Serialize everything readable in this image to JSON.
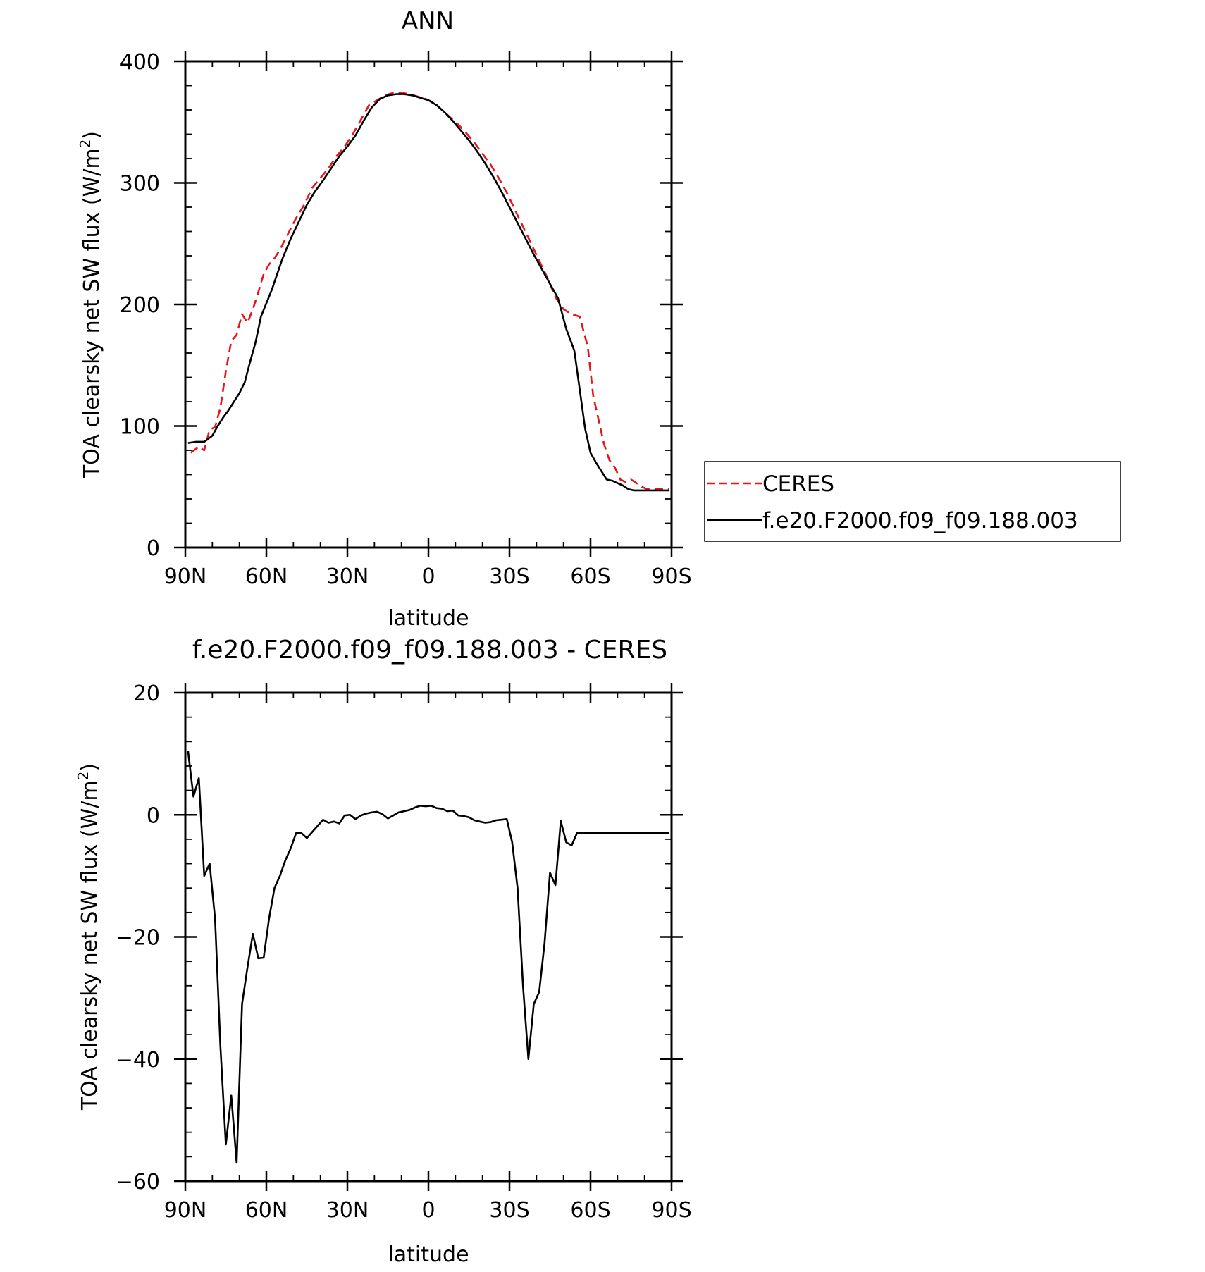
{
  "chart_data": [
    {
      "type": "line",
      "title": "ANN",
      "xlabel": "latitude",
      "ylabel": "TOA clearsky net SW flux (W/m",
      "ylabel_superscript": "2",
      "ylabel_suffix": ")",
      "xlim": [
        90,
        -90
      ],
      "ylim": [
        0,
        400
      ],
      "xticks": [
        {
          "value": 90,
          "label": "90N"
        },
        {
          "value": 60,
          "label": "60N"
        },
        {
          "value": 30,
          "label": "30N"
        },
        {
          "value": 0,
          "label": "0"
        },
        {
          "value": -30,
          "label": "30S"
        },
        {
          "value": -60,
          "label": "60S"
        },
        {
          "value": -90,
          "label": "90S"
        }
      ],
      "yticks": [
        {
          "value": 0,
          "label": "0"
        },
        {
          "value": 100,
          "label": "100"
        },
        {
          "value": 200,
          "label": "200"
        },
        {
          "value": 300,
          "label": "300"
        },
        {
          "value": 400,
          "label": "400"
        }
      ],
      "grid": false,
      "legend": {
        "position": "right-of-plot",
        "entries": [
          "CERES",
          "f.e20.F2000.f09_f09.188.003"
        ]
      },
      "series": [
        {
          "name": "CERES",
          "color": "#e8141a",
          "dash": "dashed",
          "x": [
            88,
            85,
            83,
            81,
            79,
            77,
            75,
            73,
            71,
            69,
            67,
            65,
            63,
            61,
            59,
            57,
            55,
            52,
            49,
            46,
            43,
            40,
            37,
            34,
            31,
            28,
            25,
            22,
            19,
            16,
            13,
            10,
            7,
            4,
            1,
            -2,
            -5,
            -8,
            -11,
            -14,
            -17,
            -20,
            -23,
            -26,
            -29,
            -32,
            -35,
            -38,
            -41,
            -44,
            -47,
            -50,
            -53,
            -56,
            -59,
            -61,
            -63,
            -65,
            -67,
            -69,
            -71,
            -73,
            -75,
            -77,
            -79,
            -81,
            -83,
            -85,
            -87,
            -89
          ],
          "y": [
            78,
            83,
            80,
            97,
            99,
            115,
            145,
            170,
            175,
            192,
            185,
            196,
            210,
            225,
            233,
            238,
            245,
            258,
            271,
            282,
            296,
            304,
            312,
            322,
            330,
            340,
            352,
            364,
            368,
            372,
            374,
            374,
            373,
            371,
            369,
            366,
            360,
            354,
            348,
            341,
            333,
            324,
            315,
            304,
            292,
            278,
            264,
            250,
            236,
            222,
            206,
            196,
            192,
            190,
            165,
            125,
            105,
            85,
            72,
            66,
            56,
            54,
            56,
            53,
            50,
            48,
            48,
            48,
            48,
            48
          ]
        },
        {
          "name": "f.e20.F2000.f09_f09.188.003",
          "color": "#000000",
          "dash": "solid",
          "x": [
            89,
            86,
            83,
            80,
            78,
            76,
            74,
            72,
            70,
            68,
            66,
            64,
            62,
            60,
            58,
            56,
            54,
            51,
            48,
            45,
            42,
            39,
            36,
            33,
            30,
            27,
            24,
            21,
            18,
            15,
            12,
            9,
            6,
            3,
            0,
            -3,
            -6,
            -9,
            -12,
            -15,
            -18,
            -21,
            -24,
            -27,
            -30,
            -33,
            -36,
            -39,
            -42,
            -45,
            -48,
            -51,
            -54,
            -56,
            -58,
            -60,
            -62,
            -64,
            -66,
            -68,
            -70,
            -72,
            -74,
            -76,
            -78,
            -80,
            -83,
            -86,
            -89
          ],
          "y": [
            86,
            87,
            87,
            92,
            100,
            107,
            113,
            120,
            127,
            136,
            153,
            169,
            190,
            201,
            212,
            225,
            238,
            254,
            268,
            282,
            293,
            302,
            312,
            322,
            330,
            339,
            351,
            362,
            369,
            372,
            373,
            373,
            372,
            370,
            368,
            364,
            358,
            351,
            343,
            335,
            326,
            316,
            305,
            293,
            280,
            267,
            254,
            241,
            229,
            217,
            205,
            180,
            162,
            130,
            98,
            78,
            70,
            63,
            56,
            55,
            53,
            51,
            48,
            47,
            47,
            47,
            47,
            47,
            47
          ]
        }
      ]
    },
    {
      "type": "line",
      "title": "f.e20.F2000.f09_f09.188.003 - CERES",
      "xlabel": "latitude",
      "ylabel": "TOA clearsky net SW flux (W/m",
      "ylabel_superscript": "2",
      "ylabel_suffix": ")",
      "xlim": [
        90,
        -90
      ],
      "ylim": [
        -60,
        20
      ],
      "xticks": [
        {
          "value": 90,
          "label": "90N"
        },
        {
          "value": 60,
          "label": "60N"
        },
        {
          "value": 30,
          "label": "30N"
        },
        {
          "value": 0,
          "label": "0"
        },
        {
          "value": -30,
          "label": "30S"
        },
        {
          "value": -60,
          "label": "60S"
        },
        {
          "value": -90,
          "label": "90S"
        }
      ],
      "yticks": [
        {
          "value": -60,
          "label": "−60"
        },
        {
          "value": -40,
          "label": "−40"
        },
        {
          "value": -20,
          "label": "−20"
        },
        {
          "value": 0,
          "label": "0"
        },
        {
          "value": 20,
          "label": "20"
        }
      ],
      "grid": false,
      "series": [
        {
          "color": "#000000",
          "dash": "solid",
          "x": [
            89,
            87,
            85,
            83,
            81,
            79,
            77,
            75,
            73,
            71,
            69,
            67,
            65,
            63,
            61,
            59,
            57,
            55,
            53,
            51,
            49,
            47,
            45,
            43,
            41,
            39,
            37,
            35,
            33,
            31,
            29,
            27,
            25,
            23,
            21,
            19,
            17,
            15,
            13,
            11,
            9,
            7,
            5,
            3,
            1,
            -1,
            -3,
            -5,
            -7,
            -9,
            -11,
            -13,
            -15,
            -17,
            -19,
            -21,
            -23,
            -25,
            -27,
            -29,
            -31,
            -33,
            -35,
            -37,
            -39,
            -41,
            -43,
            -45,
            -47,
            -49,
            -51,
            -53,
            -55,
            -57,
            -59,
            -61,
            -63,
            -65,
            -67,
            -69,
            -71,
            -73,
            -75,
            -77,
            -79,
            -81,
            -83,
            -85,
            -87,
            -89
          ],
          "y": [
            10.5,
            3,
            6,
            -10,
            -8,
            -17,
            -38,
            -54,
            -46,
            -57,
            -31,
            -25,
            -19.5,
            -23.5,
            -23.4,
            -17,
            -12,
            -10,
            -7.5,
            -5.5,
            -3,
            -3,
            -3.8,
            -2.8,
            -1.8,
            -0.8,
            -1.3,
            -1.1,
            -1.4,
            -0.1,
            0,
            -0.7,
            -0.1,
            0.2,
            0.4,
            0.5,
            0.1,
            -0.6,
            -0.1,
            0.4,
            0.6,
            0.8,
            1.2,
            1.5,
            1.4,
            1.5,
            1.1,
            1.0,
            0.6,
            0.7,
            -0.1,
            -0.2,
            -0.4,
            -0.9,
            -1.1,
            -1.3,
            -1.2,
            -0.9,
            -0.8,
            -0.7,
            -4.5,
            -12,
            -28,
            -40,
            -31,
            -29,
            -21,
            -9.5,
            -11.5,
            -1,
            -4.5,
            -5,
            -3,
            -3,
            -3,
            -3,
            -3,
            -3,
            -3,
            -3,
            -3,
            -3,
            -3,
            -3,
            -3,
            -3,
            -3,
            -3,
            -3,
            -3
          ]
        }
      ]
    }
  ]
}
